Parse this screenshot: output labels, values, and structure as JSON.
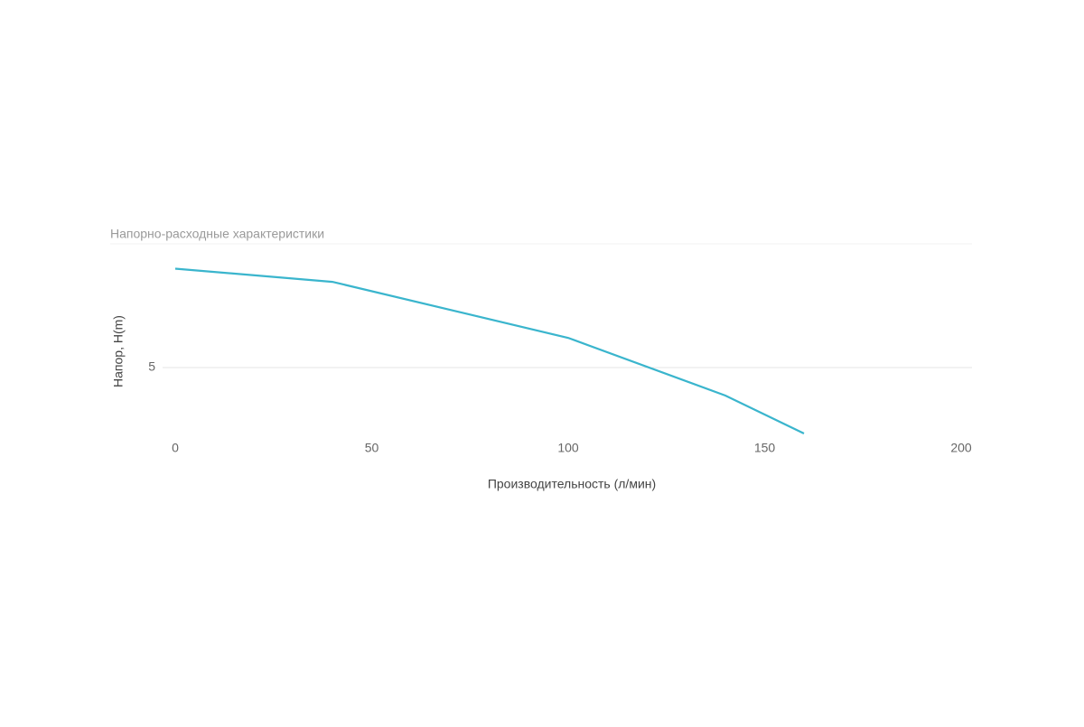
{
  "chart_data": {
    "type": "line",
    "title": "Напорно-расходные характеристики",
    "x_label": "Производительность (л/мин)",
    "y_label": "Напор, H(m)",
    "x": [
      0,
      40,
      100,
      140,
      160
    ],
    "series": [
      {
        "name": "Напор",
        "color": "#3ab5cd",
        "values": [
          8.0,
          7.6,
          5.9,
          4.15,
          3.0
        ]
      }
    ],
    "xlim": [
      0,
      200
    ],
    "xticks": [
      0,
      50,
      100,
      150,
      200
    ],
    "ylim": [
      3,
      9
    ],
    "yticks": [
      5
    ],
    "grid": true
  }
}
